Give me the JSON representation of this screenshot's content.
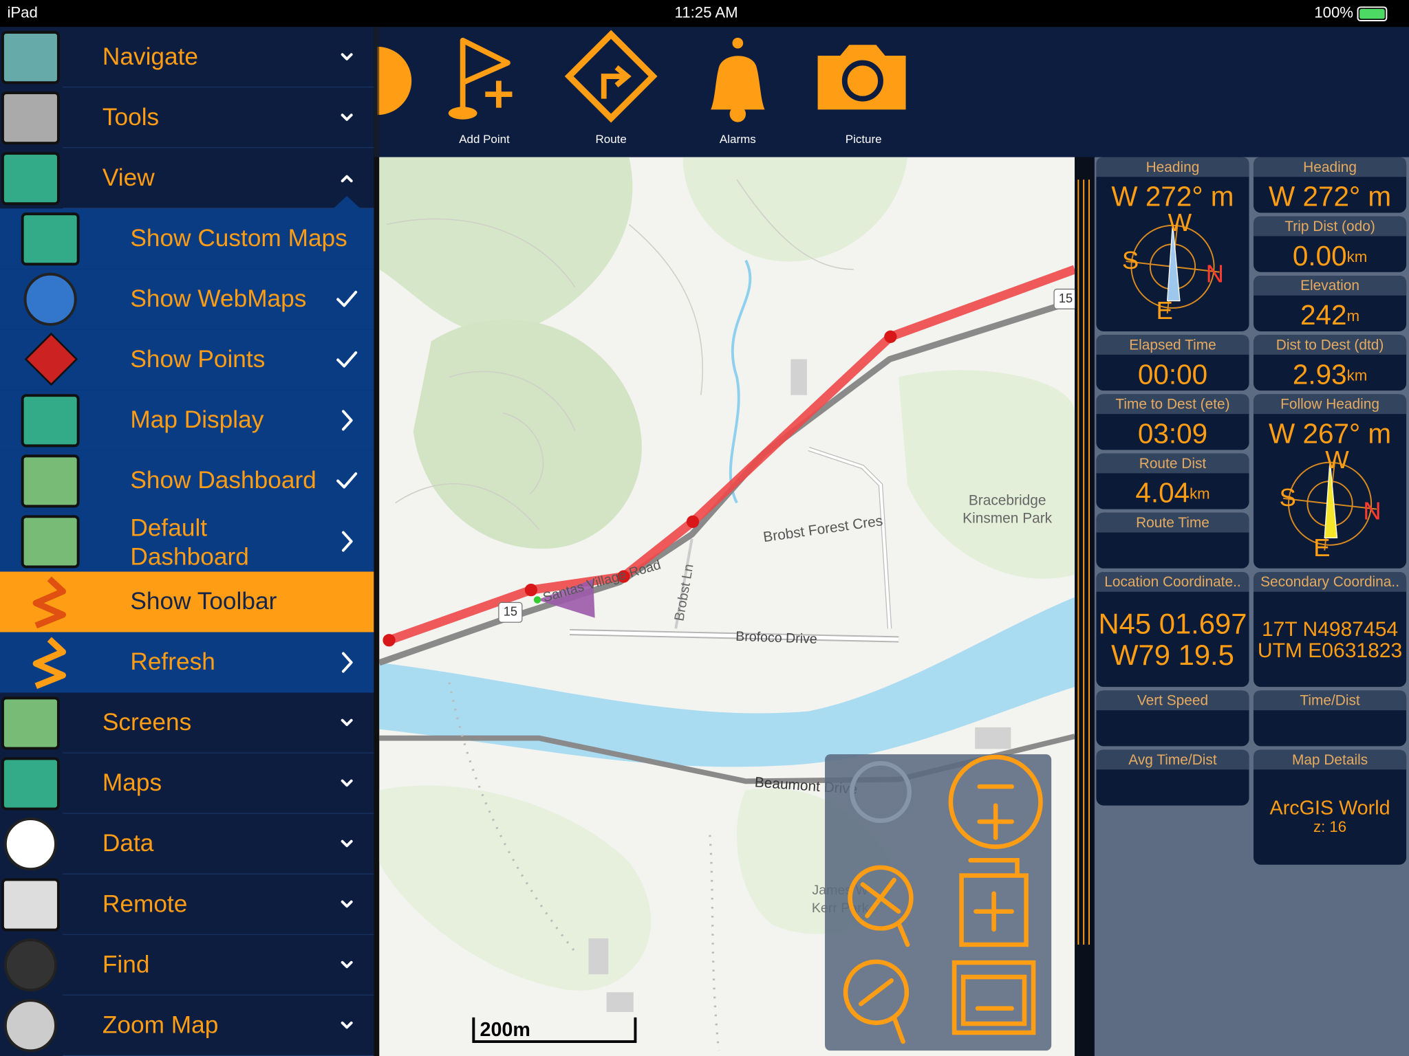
{
  "status_bar": {
    "device": "iPad",
    "time": "11:25 AM",
    "battery": "100%"
  },
  "menu": {
    "items": [
      {
        "label": "Navigate",
        "level": 0,
        "indicator": "chevron-down"
      },
      {
        "label": "Tools",
        "level": 0,
        "indicator": "chevron-down"
      },
      {
        "label": "View",
        "level": 0,
        "indicator": "chevron-up"
      },
      {
        "label": "Show Custom Maps",
        "level": 1
      },
      {
        "label": "Show WebMaps",
        "level": 1,
        "indicator": "check"
      },
      {
        "label": "Show Points",
        "level": 1,
        "indicator": "check"
      },
      {
        "label": "Map Display",
        "level": 1,
        "indicator": "chevron-right"
      },
      {
        "label": "Show Dashboard",
        "level": 1,
        "indicator": "check"
      },
      {
        "label": "Default Dashboard",
        "level": 1,
        "indicator": "chevron-right"
      },
      {
        "label": "Show Toolbar",
        "level": 1,
        "selected": true
      },
      {
        "label": "Refresh",
        "level": 1,
        "indicator": "chevron-right"
      },
      {
        "label": "Screens",
        "level": 0,
        "indicator": "chevron-down"
      },
      {
        "label": "Maps",
        "level": 0,
        "indicator": "chevron-down"
      },
      {
        "label": "Data",
        "level": 0,
        "indicator": "chevron-down"
      },
      {
        "label": "Remote",
        "level": 0,
        "indicator": "chevron-down"
      },
      {
        "label": "Find",
        "level": 0,
        "indicator": "chevron-down"
      },
      {
        "label": "Zoom Map",
        "level": 0,
        "indicator": "chevron-down"
      }
    ]
  },
  "toolbar": {
    "buttons": [
      {
        "label": "Add Point"
      },
      {
        "label": "Route"
      },
      {
        "label": "Alarms"
      },
      {
        "label": "Picture"
      }
    ]
  },
  "map": {
    "labels": [
      "15",
      "15",
      "Santas Village Road",
      "Brobst Ln",
      "Brobst Forest Cres",
      "Bracebridge",
      "Kinsmen Park",
      "Brofoco Drive",
      "Beaumont Drive",
      "James W",
      "Kerr Park"
    ],
    "scale": "200m"
  },
  "dashboard": {
    "widgets": [
      {
        "title": "Heading",
        "value": "W 272° m",
        "compass": [
          "W",
          "S",
          "N",
          "E"
        ]
      },
      {
        "title": "Heading",
        "value": "W 272° m"
      },
      {
        "title": "Trip Dist (odo)",
        "value": "0.00",
        "unit": "km"
      },
      {
        "title": "Elevation",
        "value": "242",
        "unit": "m"
      },
      {
        "title": "Elapsed Time",
        "value": "00:00"
      },
      {
        "title": "Dist to Dest (dtd)",
        "value": "2.93",
        "unit": "km"
      },
      {
        "title": "Time to Dest (ete)",
        "value": "03:09"
      },
      {
        "title": "Follow Heading",
        "value": "W 267° m",
        "compass": [
          "W",
          "S",
          "N",
          "E"
        ]
      },
      {
        "title": "Route Dist",
        "value": "4.04",
        "unit": "km"
      },
      {
        "title": "Route Time"
      },
      {
        "title": "Location Coordinate..",
        "lines": [
          "N45 01.697",
          "W79 19.5"
        ]
      },
      {
        "title": "Secondary Coordina..",
        "lines": [
          "17T N4987454",
          "UTM E0631823"
        ]
      },
      {
        "title": "Vert Speed"
      },
      {
        "title": "Time/Dist"
      },
      {
        "title": "Avg Time/Dist"
      },
      {
        "title": "Map Details",
        "lines": [
          "ArcGIS World",
          "z: 16"
        ]
      }
    ]
  }
}
